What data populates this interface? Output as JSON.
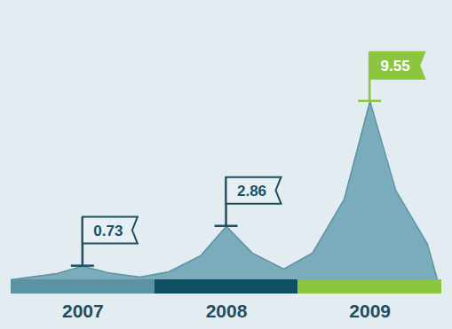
{
  "chart_data": {
    "type": "area",
    "categories": [
      "2007",
      "2008",
      "2009"
    ],
    "values": [
      0.73,
      2.86,
      9.55
    ],
    "colors": [
      "#5b93a3",
      "#0e4f62",
      "#8cc63f"
    ],
    "ylim": [
      0,
      14
    ],
    "data_labels": true,
    "tick_labels": "x"
  }
}
